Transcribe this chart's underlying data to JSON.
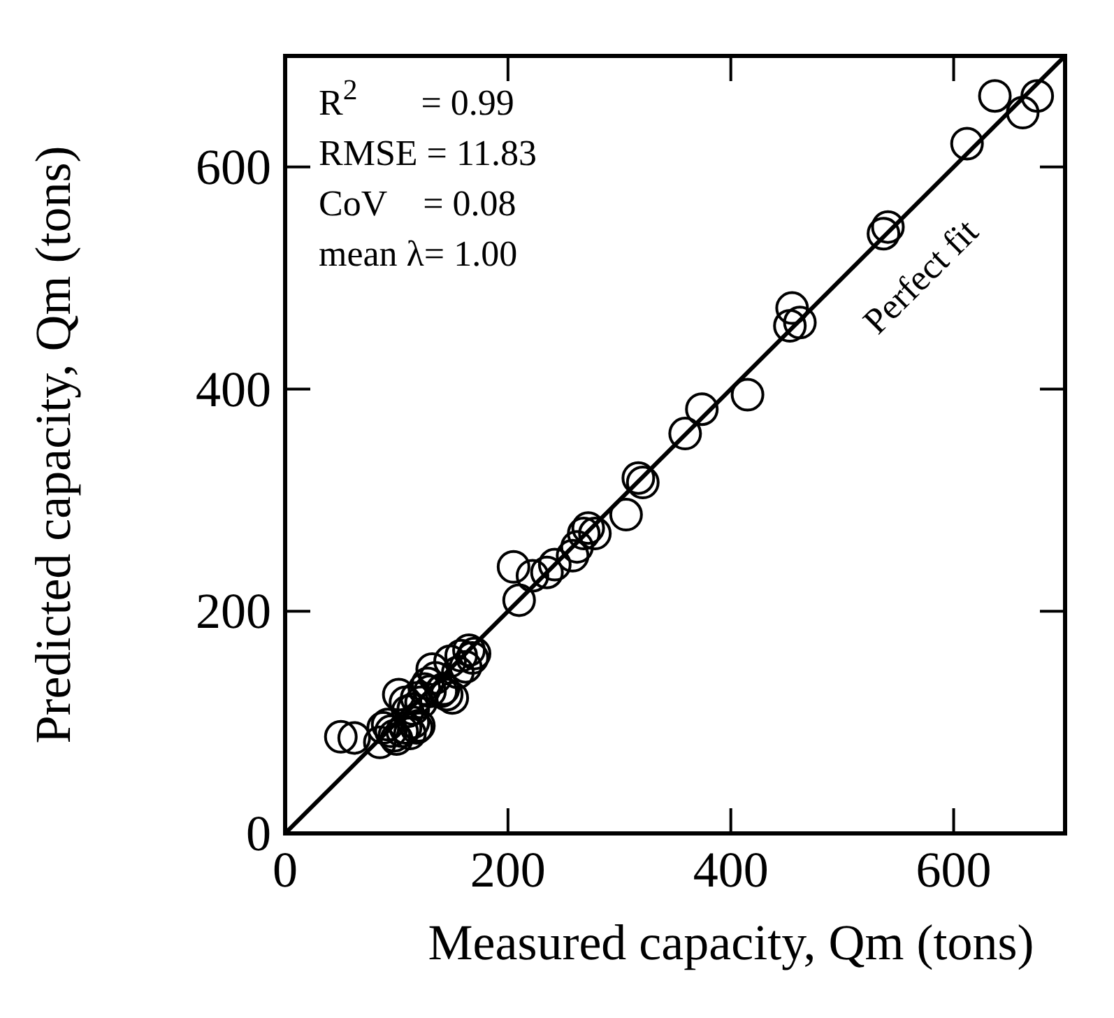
{
  "chart_data": {
    "type": "scatter",
    "xlabel": "Measured capacity, Qm (tons)",
    "ylabel": "Predicted capacity, Qm (tons)",
    "xlim": [
      0,
      700
    ],
    "ylim": [
      0,
      700
    ],
    "xticks": [
      0,
      200,
      400,
      600
    ],
    "yticks": [
      0,
      200,
      400,
      600
    ],
    "grid": false,
    "marker": "circle",
    "annotations": [
      "R$^{2}$       = 0.99",
      "RMSE = 11.83",
      "CoV    = 0.08",
      "mean λ= 1.00",
      "Perfect fit"
    ],
    "series": [
      {
        "color": "#000000",
        "x": [
          50,
          62,
          85,
          88,
          92,
          95,
          98,
          100,
          105,
          108,
          112,
          115,
          118,
          120,
          110,
          102,
          108,
          115,
          118,
          122,
          125,
          128,
          130,
          132,
          135,
          140,
          142,
          145,
          148,
          150,
          155,
          158,
          162,
          165,
          168,
          170,
          205,
          210,
          222,
          235,
          242,
          258,
          262,
          268,
          272,
          278,
          306,
          317,
          321,
          359,
          374,
          415,
          453,
          455,
          462,
          537,
          541,
          612,
          637,
          662,
          675
        ],
        "values": [
          87,
          86,
          82,
          95,
          98,
          92,
          88,
          85,
          92,
          95,
          90,
          100,
          95,
          97,
          110,
          125,
          118,
          112,
          122,
          118,
          130,
          135,
          128,
          148,
          140,
          128,
          130,
          125,
          155,
          122,
          145,
          160,
          150,
          165,
          158,
          162,
          240,
          210,
          232,
          235,
          242,
          250,
          258,
          270,
          275,
          270,
          287,
          320,
          316,
          360,
          382,
          395,
          457,
          473,
          460,
          540,
          546,
          621,
          664,
          649,
          664
        ]
      },
      {
        "type": "line",
        "color": "#000000",
        "x": [
          0,
          700
        ],
        "values": [
          0,
          700
        ],
        "line_style": "solid",
        "marker": "none"
      }
    ]
  }
}
